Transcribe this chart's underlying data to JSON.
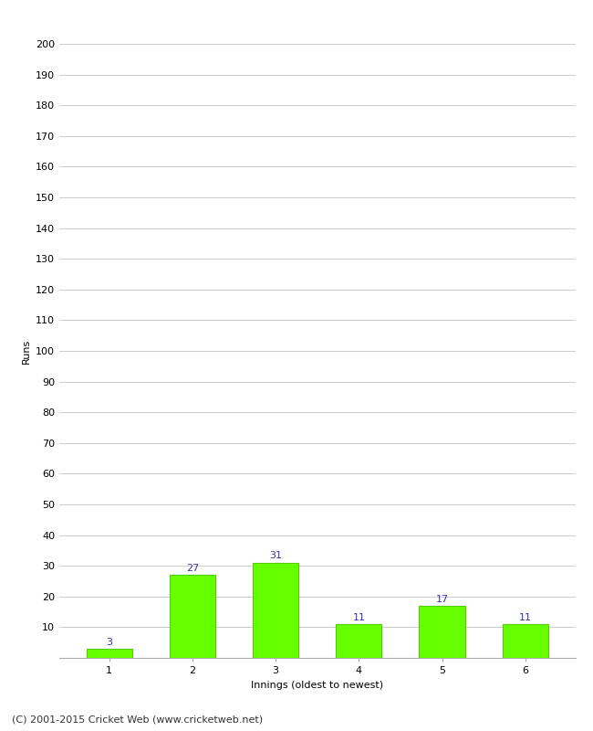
{
  "categories": [
    "1",
    "2",
    "3",
    "4",
    "5",
    "6"
  ],
  "values": [
    3,
    27,
    31,
    11,
    17,
    11
  ],
  "bar_color": "#66ff00",
  "bar_edge_color": "#55cc00",
  "value_label_color": "#3333aa",
  "ylabel": "Runs",
  "xlabel": "Innings (oldest to newest)",
  "ylim": [
    0,
    200
  ],
  "yticks": [
    0,
    10,
    20,
    30,
    40,
    50,
    60,
    70,
    80,
    90,
    100,
    110,
    120,
    130,
    140,
    150,
    160,
    170,
    180,
    190,
    200
  ],
  "footer": "(C) 2001-2015 Cricket Web (www.cricketweb.net)",
  "background_color": "#ffffff",
  "grid_color": "#cccccc",
  "value_fontsize": 8,
  "label_fontsize": 8,
  "tick_fontsize": 8,
  "footer_fontsize": 8,
  "bar_width": 0.55
}
